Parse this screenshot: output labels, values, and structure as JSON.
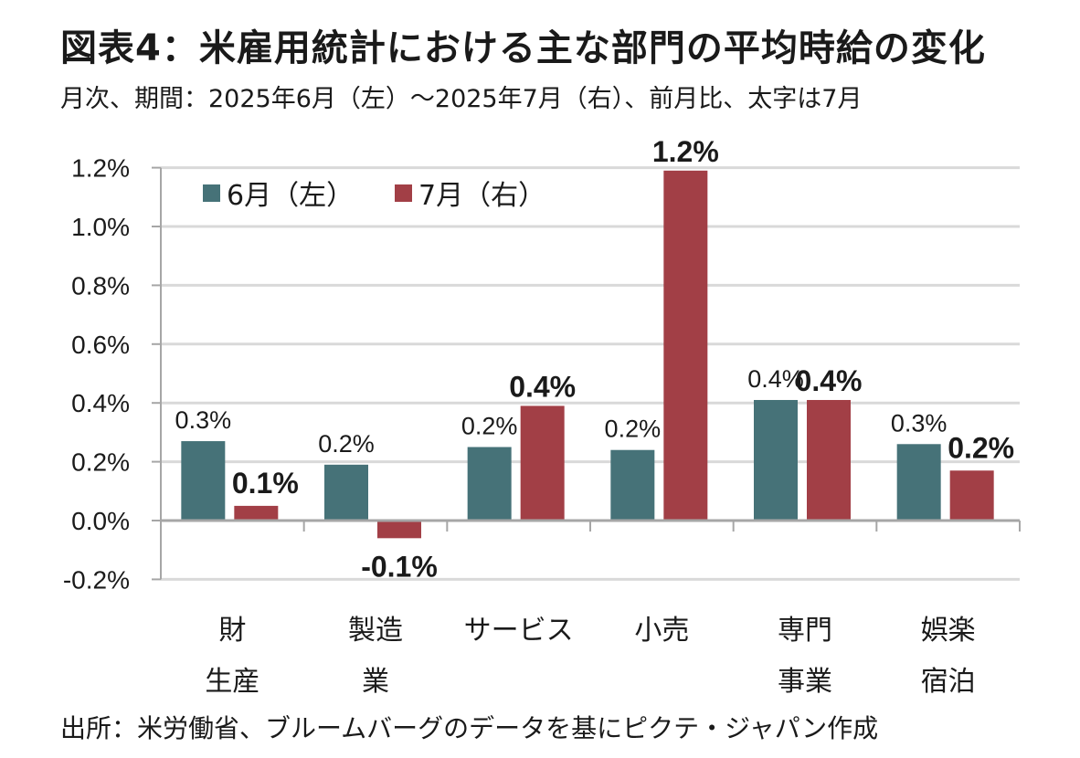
{
  "chart_data": {
    "type": "bar",
    "title": "図表4：米雇用統計における主な部門の平均時給の変化",
    "subtitle": "月次、期間：2025年6月（左）～2025年7月（右）、前月比、太字は7月",
    "source": "出所：米労働省、ブルームバーグのデータを基にピクテ・ジャパン作成",
    "xlabel": "",
    "ylabel": "",
    "ylim": [
      -0.2,
      1.2
    ],
    "yticks": [
      -0.2,
      0.0,
      0.2,
      0.4,
      0.6,
      0.8,
      1.0,
      1.2
    ],
    "ytick_labels": [
      "-0.2%",
      "0.0%",
      "0.2%",
      "0.4%",
      "0.6%",
      "0.8%",
      "1.0%",
      "1.2%"
    ],
    "grid": true,
    "legend_position": "top-left",
    "categories": [
      {
        "line1": "財",
        "line2": "生産"
      },
      {
        "line1": "製造",
        "line2": "業"
      },
      {
        "line1": "サービス",
        "line2": ""
      },
      {
        "line1": "小売",
        "line2": ""
      },
      {
        "line1": "専門",
        "line2": "事業"
      },
      {
        "line1": "娯楽",
        "line2": "宿泊"
      }
    ],
    "series": [
      {
        "name": "6月（左）",
        "color": "#467278",
        "values": [
          0.27,
          0.19,
          0.25,
          0.24,
          0.41,
          0.26
        ],
        "labels": [
          "0.3%",
          "0.2%",
          "0.2%",
          "0.2%",
          "0.4%",
          "0.3%"
        ]
      },
      {
        "name": "7月（右）",
        "color": "#a23f46",
        "values": [
          0.05,
          -0.06,
          0.39,
          1.19,
          0.41,
          0.17
        ],
        "labels": [
          "0.1%",
          "-0.1%",
          "0.4%",
          "1.2%",
          "0.4%",
          "0.2%"
        ]
      }
    ]
  }
}
